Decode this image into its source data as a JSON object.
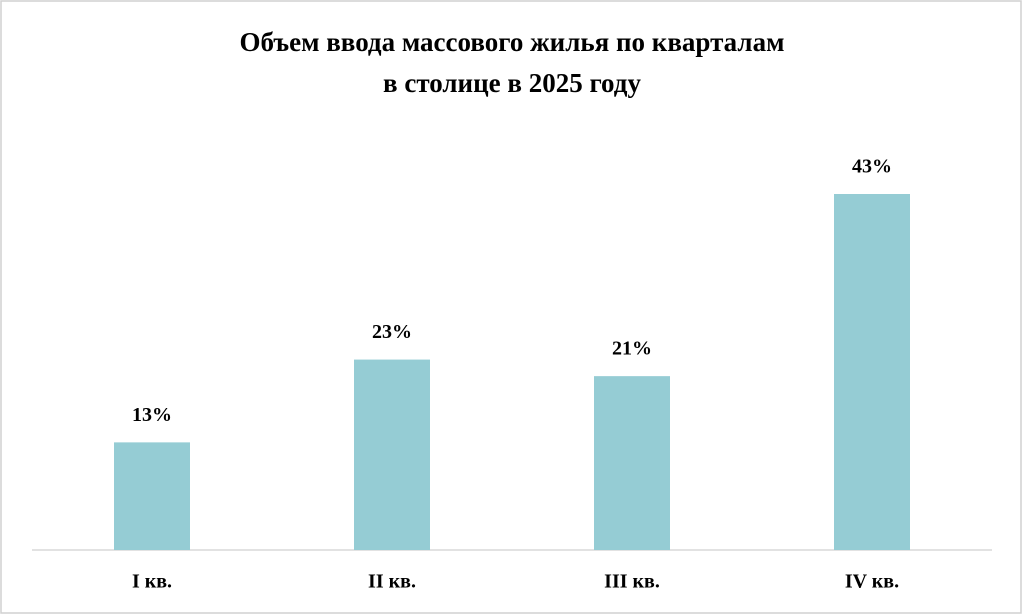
{
  "chart_data": {
    "type": "bar",
    "title": [
      "Объем ввода массового жилья по кварталам",
      "в столице в 2025 году"
    ],
    "categories": [
      "I кв.",
      "II кв.",
      "III кв.",
      "IV кв."
    ],
    "values": [
      13,
      23,
      21,
      43
    ],
    "value_labels": [
      "13%",
      "23%",
      "21%",
      "43%"
    ],
    "color": "#95ccd4"
  }
}
